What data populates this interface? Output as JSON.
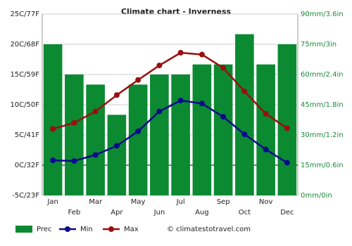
{
  "chart_data": {
    "type": "bar",
    "title": "Climate chart - Inverness",
    "categories": [
      "Jan",
      "Feb",
      "Mar",
      "Apr",
      "May",
      "Jun",
      "Jul",
      "Aug",
      "Sep",
      "Oct",
      "Nov",
      "Dec"
    ],
    "series": [
      {
        "name": "Prec",
        "type": "bar",
        "axis": "y2",
        "color": "#0b8a32",
        "values": [
          75,
          60,
          55,
          40,
          55,
          60,
          60,
          65,
          65,
          80,
          65,
          75
        ]
      },
      {
        "name": "Min",
        "type": "line",
        "color": "#0a0a8c",
        "values": [
          0.8,
          0.7,
          1.7,
          3.2,
          5.6,
          8.9,
          10.7,
          10.2,
          8.0,
          5.1,
          2.6,
          0.4
        ]
      },
      {
        "name": "Max",
        "type": "line",
        "color": "#990f0f",
        "values": [
          6.0,
          7.0,
          8.9,
          11.6,
          14.1,
          16.5,
          18.6,
          18.3,
          16.1,
          12.2,
          8.5,
          6.1
        ]
      }
    ],
    "ylim": [
      -5,
      25
    ],
    "yticks": [
      {
        "value": -5,
        "label": "-5C/23F"
      },
      {
        "value": 0,
        "label": "0C/32F"
      },
      {
        "value": 5,
        "label": "5C/41F"
      },
      {
        "value": 10,
        "label": "10C/50F"
      },
      {
        "value": 15,
        "label": "15C/59F"
      },
      {
        "value": 20,
        "label": "20C/68F"
      },
      {
        "value": 25,
        "label": "25C/77F"
      }
    ],
    "y2lim": [
      0,
      90
    ],
    "y2ticks": [
      {
        "value": 0,
        "label": "0mm/0in"
      },
      {
        "value": 15,
        "label": "15mm/0.6in"
      },
      {
        "value": 30,
        "label": "30mm/1.2in"
      },
      {
        "value": 45,
        "label": "45mm/1.8in"
      },
      {
        "value": 60,
        "label": "60mm/2.4in"
      },
      {
        "value": 75,
        "label": "75mm/3in"
      },
      {
        "value": 90,
        "label": "90mm/3.6in"
      }
    ],
    "grid": true,
    "credit": "© climatestotravel.com"
  }
}
